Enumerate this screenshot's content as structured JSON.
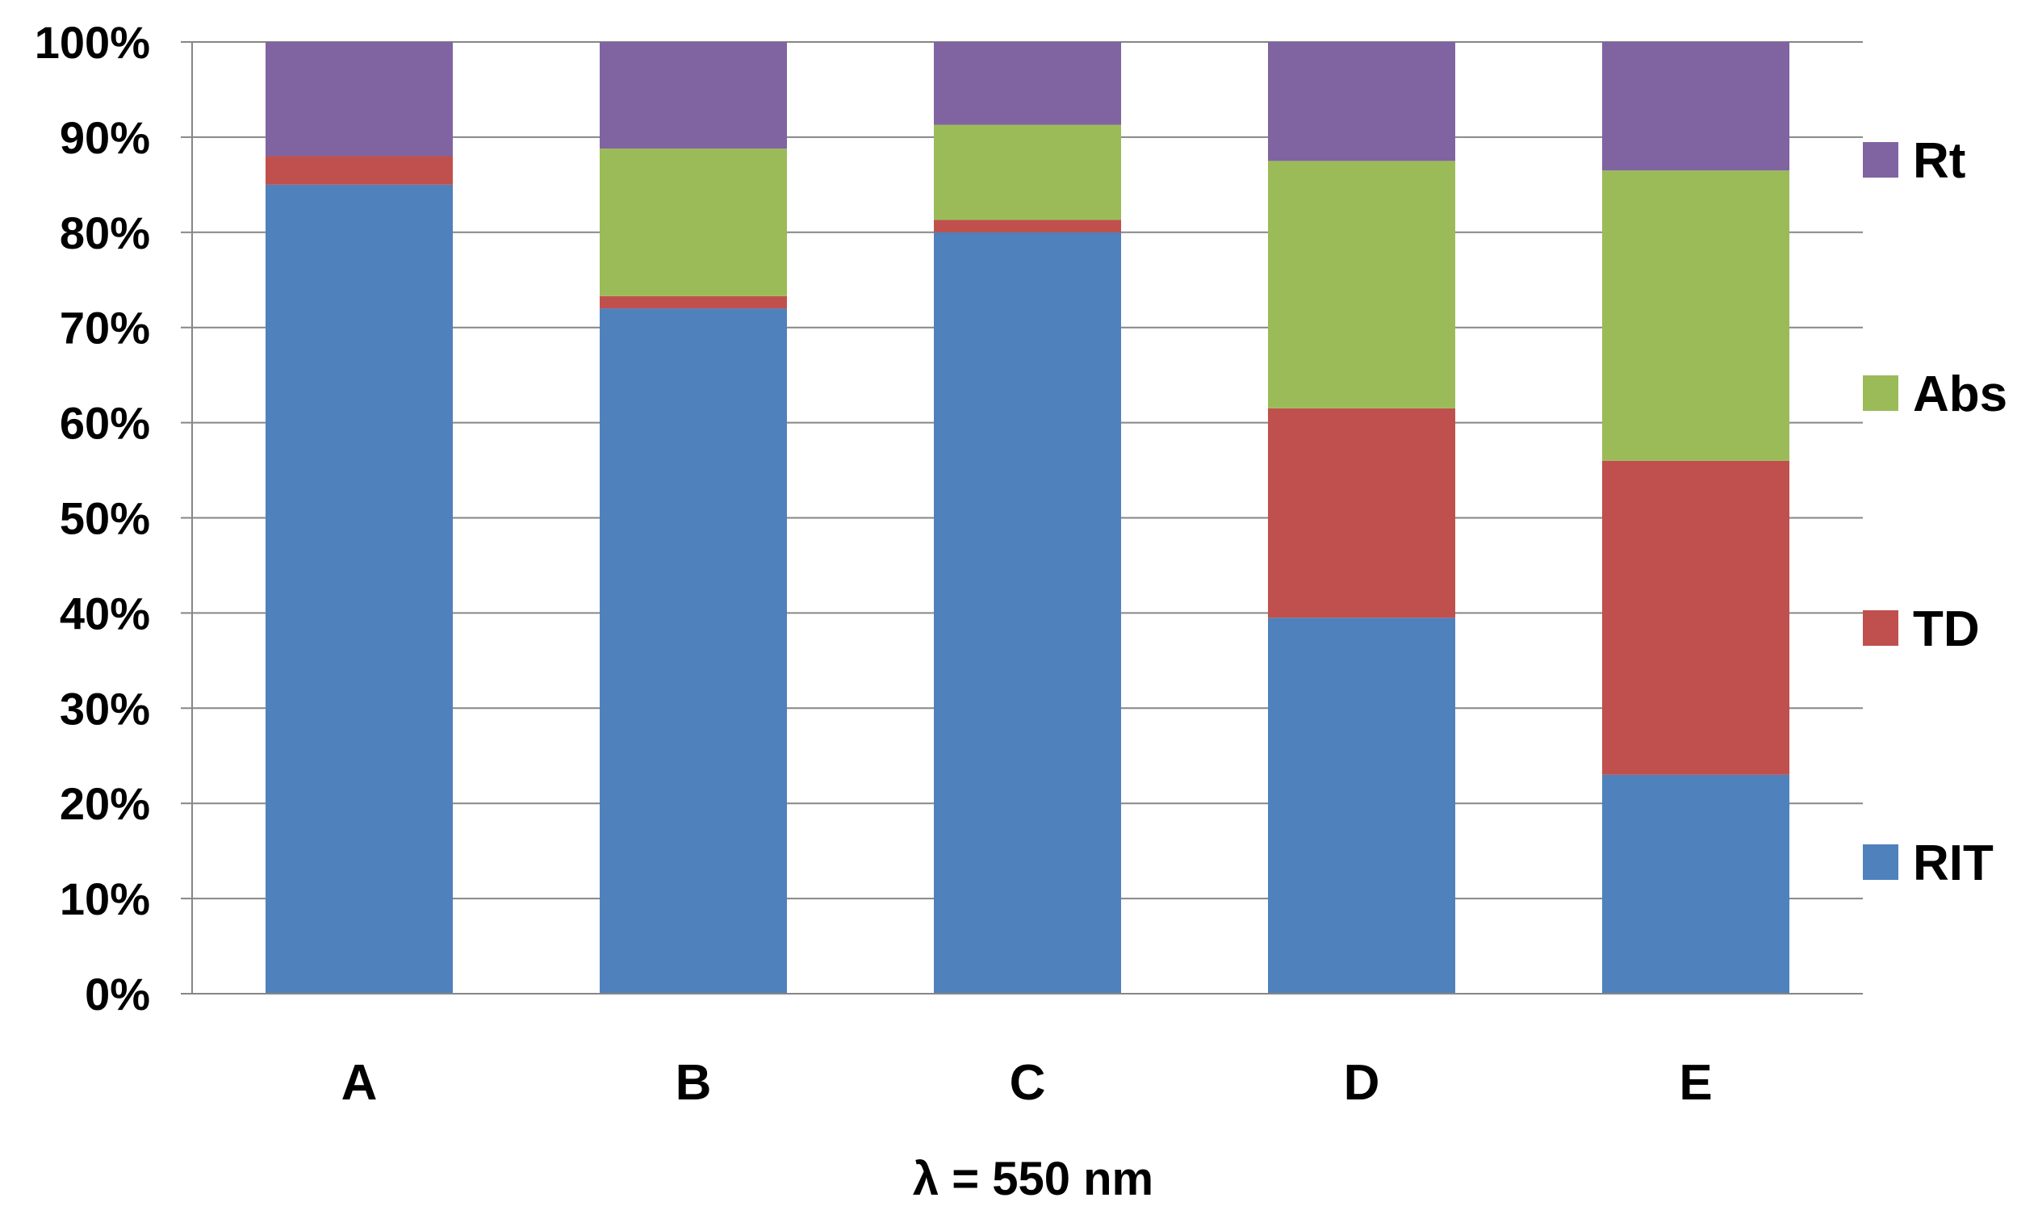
{
  "chart_data": {
    "type": "bar",
    "stacked": true,
    "categories": [
      "A",
      "B",
      "C",
      "D",
      "E"
    ],
    "series": [
      {
        "name": "RIT",
        "color": "#4F81BD",
        "values": [
          85,
          72,
          80,
          39.5,
          23
        ]
      },
      {
        "name": "TD",
        "color": "#C0504D",
        "values": [
          3,
          1.3,
          1.3,
          22,
          33
        ]
      },
      {
        "name": "Abs",
        "color": "#9BBB59",
        "values": [
          0,
          15.5,
          10,
          26,
          30.5
        ]
      },
      {
        "name": "Rt",
        "color": "#8064A2",
        "values": [
          12,
          11.2,
          8.7,
          12.5,
          13.5
        ]
      }
    ],
    "title": "",
    "xlabel": "λ = 550 nm",
    "ylabel": "",
    "ylim": [
      0,
      100
    ],
    "y_ticks": [
      "0%",
      "10%",
      "20%",
      "30%",
      "40%",
      "50%",
      "60%",
      "70%",
      "80%",
      "90%",
      "100%"
    ],
    "grid": true,
    "legend": [
      "Rt",
      "Abs",
      "TD",
      "RIT"
    ],
    "legend_position": "right"
  }
}
